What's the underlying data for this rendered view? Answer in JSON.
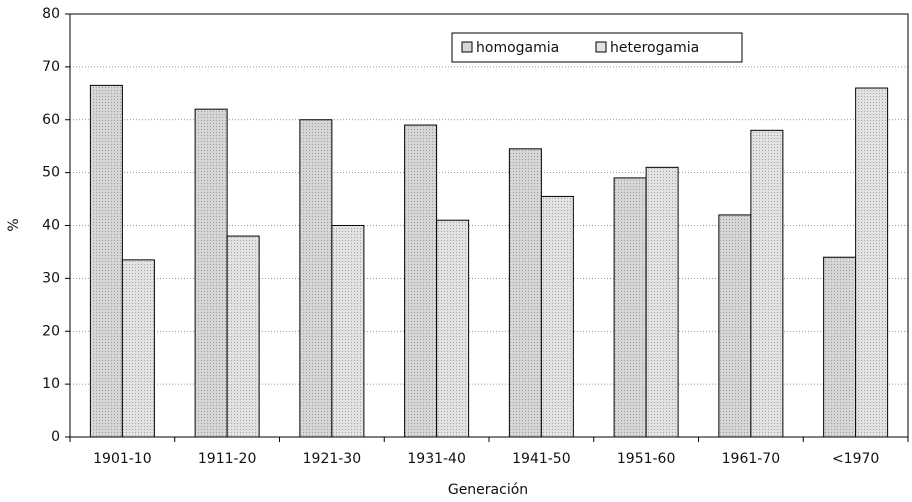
{
  "chart_data": {
    "type": "bar",
    "x_label": "Generación",
    "y_label": "%",
    "categories": [
      "1901-10",
      "1911-20",
      "1921-30",
      "1931-40",
      "1941-50",
      "1951-60",
      "1961-70",
      "<1970"
    ],
    "series": [
      {
        "name": "homogamia",
        "color": "#d6d6d6",
        "values": [
          66.5,
          62,
          60,
          59,
          54.5,
          49,
          42,
          34
        ]
      },
      {
        "name": "heterogamia",
        "color": "#e2e2e2",
        "values": [
          33.5,
          38,
          40,
          41,
          45.5,
          51,
          58,
          66
        ]
      }
    ],
    "ylim": [
      0,
      80
    ],
    "yticks": [
      0,
      10,
      20,
      30,
      40,
      50,
      60,
      70,
      80
    ],
    "grid": true
  }
}
